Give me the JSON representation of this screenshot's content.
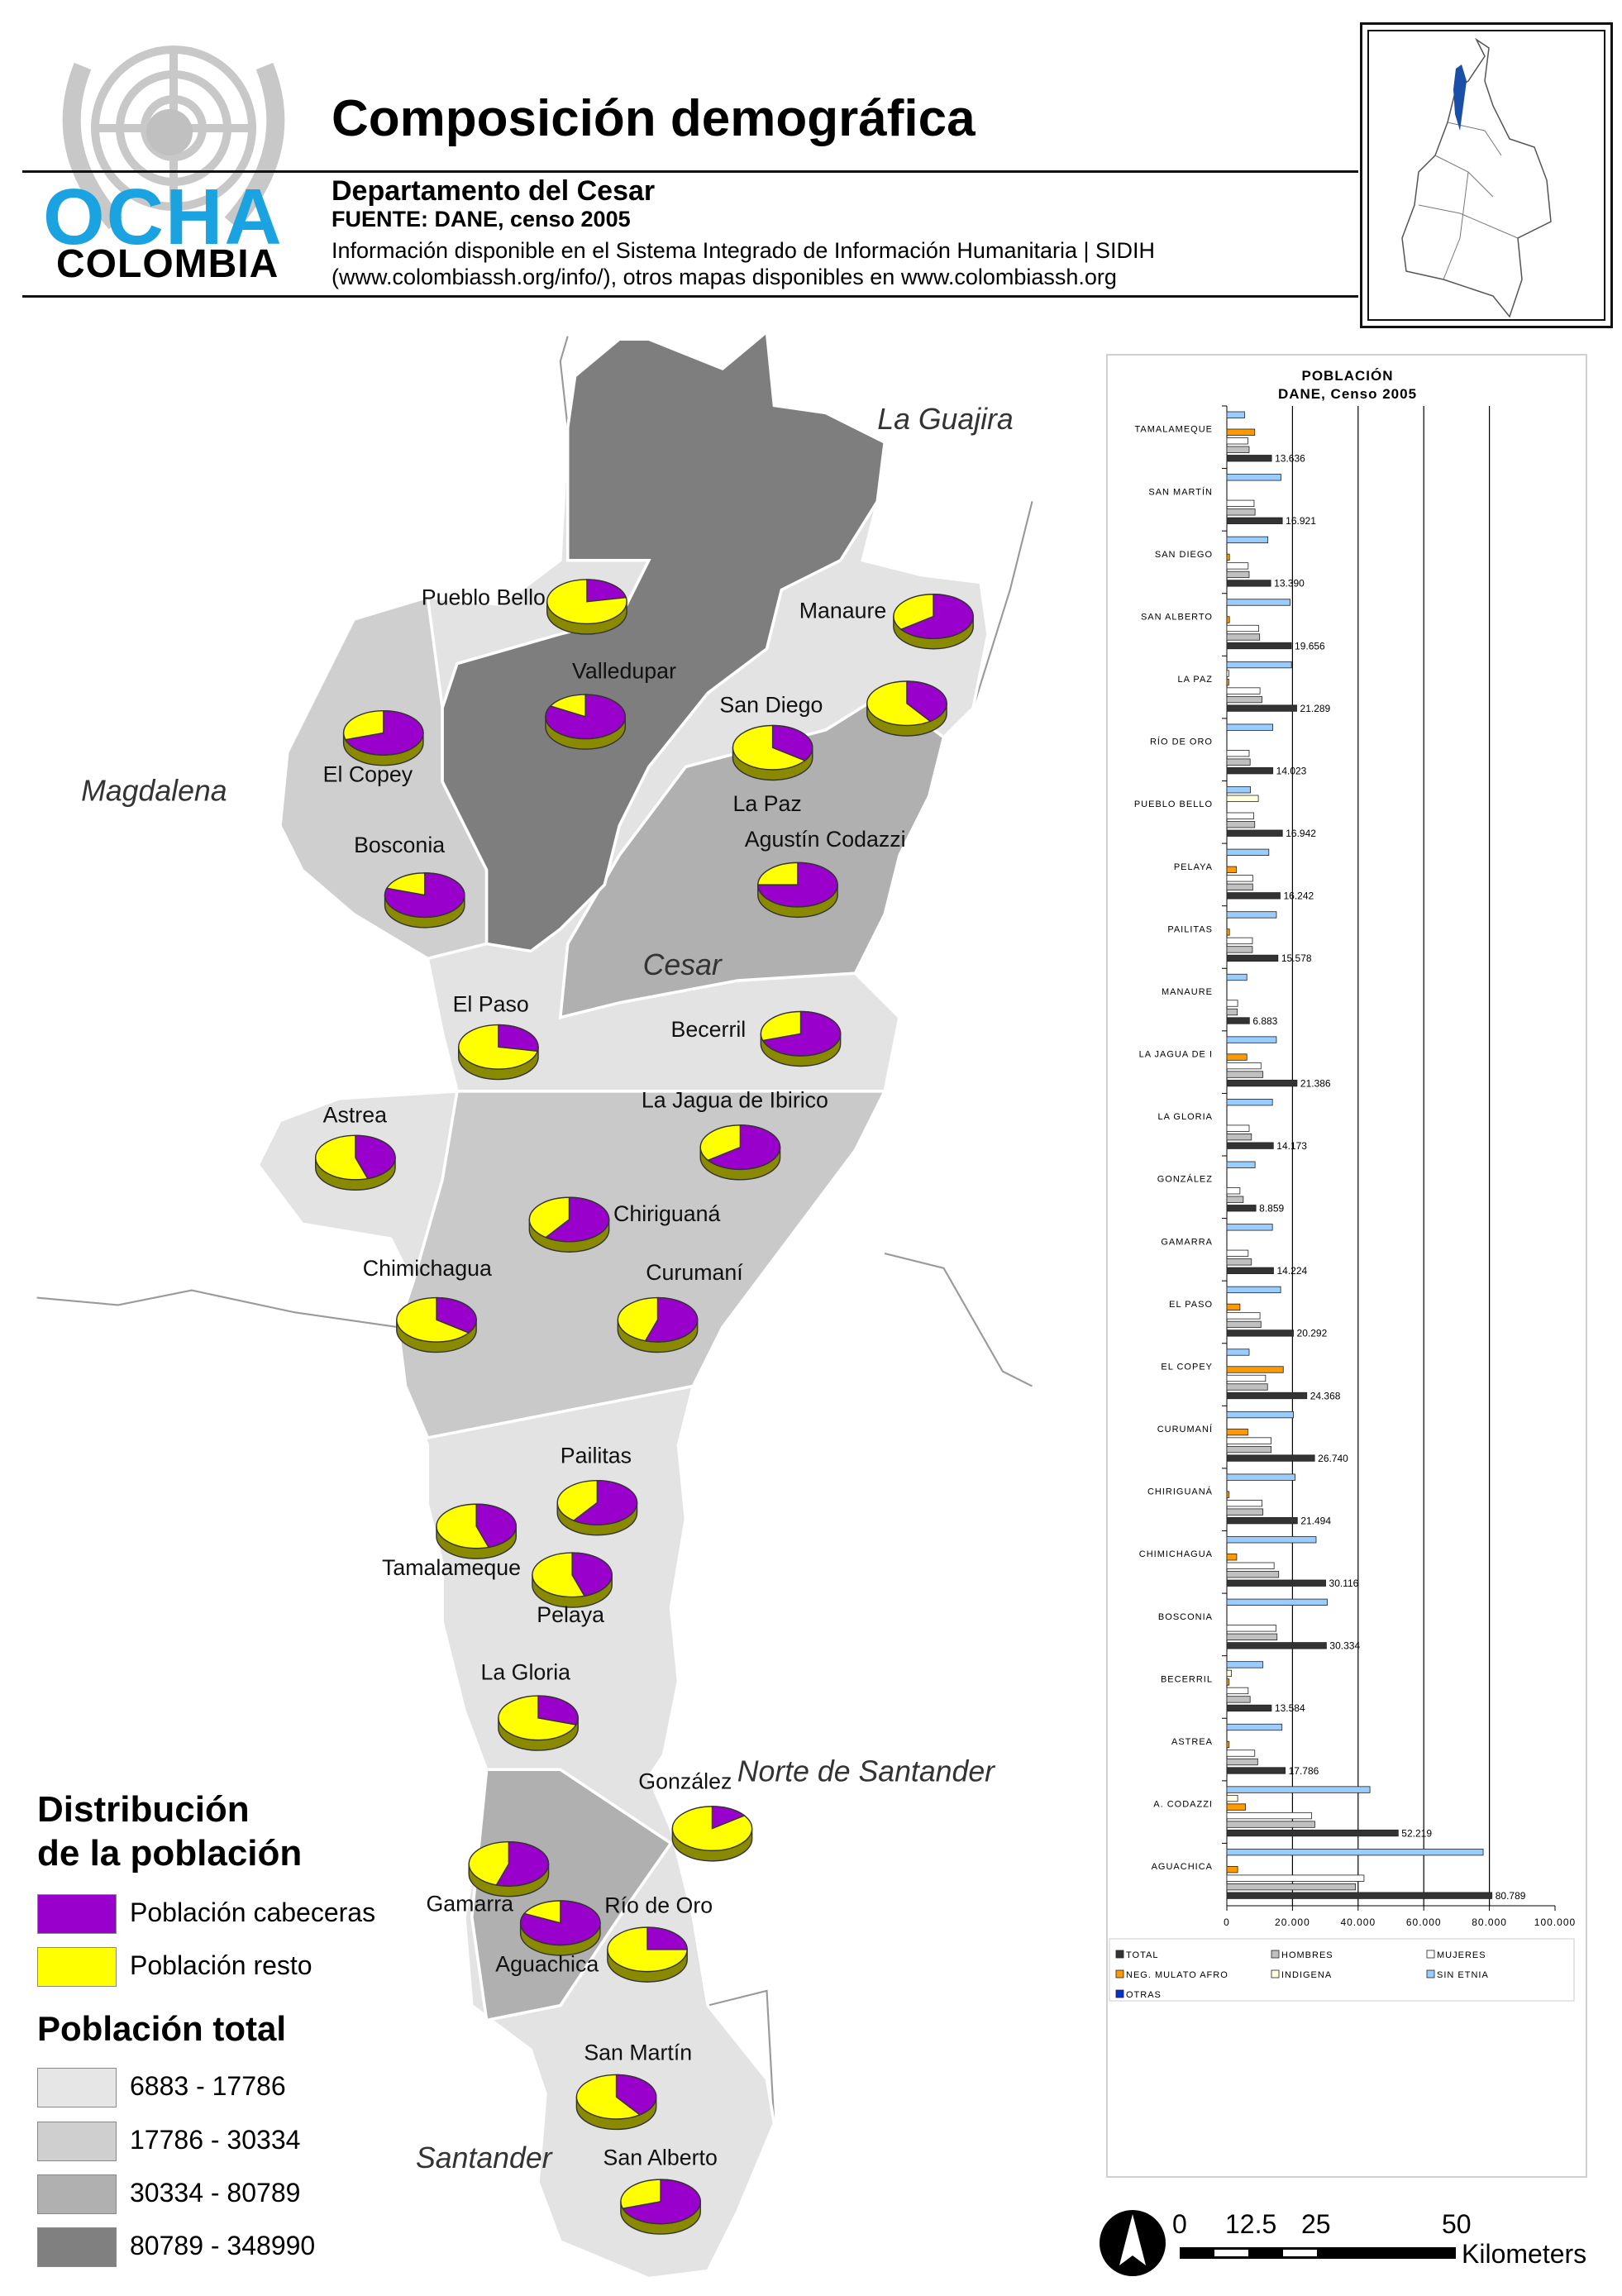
{
  "header": {
    "title": "Composición demográfica",
    "department": "Departamento del Cesar",
    "source": "FUENTE: DANE, censo 2005",
    "info_line1": "Información disponible en el Sistema Integrado de Información Humanitaria | SIDIH",
    "info_line2": "(www.colombiassh.org/info/), otros mapas disponibles en www.colombiassh.org"
  },
  "logo": {
    "ocha": "OCHA",
    "country": "COLOMBIA",
    "ocha_color": "#1aa3e0"
  },
  "map": {
    "regions": [
      {
        "name": "La Guajira"
      },
      {
        "name": "Magdalena"
      },
      {
        "name": "Cesar"
      },
      {
        "name": "Norte de Santander"
      },
      {
        "name": "Santander"
      }
    ],
    "municipalities": [
      {
        "name": "Pueblo Bello",
        "cabecera_share": 0.22
      },
      {
        "name": "Manaure",
        "cabecera_share": 0.65
      },
      {
        "name": "Valledupar",
        "cabecera_share": 0.83
      },
      {
        "name": "San Diego",
        "cabecera_share": 0.35
      },
      {
        "name": "La Paz",
        "cabecera_share": 0.4
      },
      {
        "name": "El Copey",
        "cabecera_share": 0.7
      },
      {
        "name": "Bosconia",
        "cabecera_share": 0.8
      },
      {
        "name": "Agustín Codazzi",
        "cabecera_share": 0.75
      },
      {
        "name": "El Paso",
        "cabecera_share": 0.28
      },
      {
        "name": "Becerril",
        "cabecera_share": 0.7
      },
      {
        "name": "Astrea",
        "cabecera_share": 0.45
      },
      {
        "name": "La Jagua de Ibirico",
        "cabecera_share": 0.65
      },
      {
        "name": "Chiriguaná",
        "cabecera_share": 0.6
      },
      {
        "name": "Chimichagua",
        "cabecera_share": 0.35
      },
      {
        "name": "Curumaní",
        "cabecera_share": 0.55
      },
      {
        "name": "Pailitas",
        "cabecera_share": 0.6
      },
      {
        "name": "Tamalameque",
        "cabecera_share": 0.45
      },
      {
        "name": "Pelaya",
        "cabecera_share": 0.45
      },
      {
        "name": "La Gloria",
        "cabecera_share": 0.3
      },
      {
        "name": "González",
        "cabecera_share": 0.15
      },
      {
        "name": "Gamarra",
        "cabecera_share": 0.55
      },
      {
        "name": "Río de Oro",
        "cabecera_share": 0.25
      },
      {
        "name": "Aguachica",
        "cabecera_share": 0.82
      },
      {
        "name": "San Martín",
        "cabecera_share": 0.4
      },
      {
        "name": "San Alberto",
        "cabecera_share": 0.7
      }
    ]
  },
  "legend": {
    "dist_title_line1": "Distribución",
    "dist_title_line2": "de la población",
    "cabeceras": {
      "label": "Población cabeceras",
      "color": "#9900cc"
    },
    "resto": {
      "label": "Población resto",
      "color": "#ffff00"
    },
    "total_title": "Población total",
    "classes": [
      {
        "label": "6883 - 17786",
        "color": "#e6e6e6"
      },
      {
        "label": "17786 - 30334",
        "color": "#cfcfcf"
      },
      {
        "label": "30334 - 80789",
        "color": "#b0b0b0"
      },
      {
        "label": "80789 - 348990",
        "color": "#808080"
      }
    ]
  },
  "scale": {
    "ticks": [
      "0",
      "12.5",
      "25",
      "50"
    ],
    "unit": "Kilometers"
  },
  "chart_data": {
    "type": "bar",
    "orientation": "horizontal",
    "title": "POBLACIÓN",
    "subtitle": "DANE, Censo 2005",
    "xlim": [
      0,
      100000
    ],
    "xticks": [
      "0",
      "20.000",
      "40.000",
      "60.000",
      "80.000",
      "100.000"
    ],
    "grid": true,
    "legend_position": "bottom",
    "categories": [
      "TAMALAMEQUE",
      "SAN MARTÍN",
      "SAN DIEGO",
      "SAN ALBERTO",
      "LA PAZ",
      "RÍO DE ORO",
      "PUEBLO BELLO",
      "PELAYA",
      "PAILITAS",
      "MANAURE",
      "LA JAGUA DE I",
      "LA GLORIA",
      "GONZÁLEZ",
      "GAMARRA",
      "EL PASO",
      "EL COPEY",
      "CURUMANÍ",
      "CHIRIGUANÁ",
      "CHIMICHAGUA",
      "BOSCONIA",
      "BECERRIL",
      "ASTREA",
      "A. CODAZZI",
      "AGUACHICA"
    ],
    "total_labels": [
      "13.636",
      "16.921",
      "13.390",
      "19.656",
      "21.289",
      "14.023",
      "16.942",
      "16.242",
      "15.578",
      "6.883",
      "21.386",
      "14.173",
      "8.859",
      "14.224",
      "20.292",
      "24.368",
      "26.740",
      "21.494",
      "30.116",
      "30.334",
      "13.584",
      "17.786",
      "52.219",
      "80.789"
    ],
    "series": [
      {
        "name": "SIN ETNIA",
        "color": "#99ccff",
        "values": [
          5400,
          16500,
          12500,
          19300,
          19700,
          14000,
          7200,
          12800,
          15100,
          6100,
          15100,
          13900,
          8600,
          13900,
          16400,
          6800,
          20300,
          20800,
          27200,
          30600,
          11000,
          16800,
          43600,
          78100
        ]
      },
      {
        "name": "INDIGENA",
        "color": "#ffffe0",
        "values": [
          0,
          0,
          0,
          0,
          600,
          0,
          9600,
          0,
          0,
          0,
          0,
          0,
          0,
          0,
          0,
          0,
          0,
          0,
          0,
          0,
          1400,
          0,
          3300,
          0
        ]
      },
      {
        "name": "NEG. MULATO AFRO",
        "color": "#ff9900",
        "values": [
          8500,
          0,
          800,
          800,
          600,
          0,
          0,
          2900,
          800,
          0,
          6100,
          0,
          0,
          0,
          4000,
          17200,
          6400,
          700,
          3000,
          0,
          700,
          700,
          5700,
          3300
        ]
      },
      {
        "name": "MUJERES",
        "color": "#ffffff",
        "values": [
          6400,
          8300,
          6500,
          9700,
          10100,
          6800,
          8200,
          7900,
          7800,
          3300,
          10400,
          6800,
          4000,
          6500,
          10100,
          11800,
          13500,
          10700,
          14400,
          15000,
          6500,
          8500,
          25800,
          41800
        ]
      },
      {
        "name": "HOMBRES",
        "color": "#c0c0c0",
        "values": [
          6800,
          8600,
          6800,
          10000,
          10700,
          7100,
          8500,
          7900,
          7800,
          3200,
          11000,
          7500,
          5000,
          7500,
          10400,
          12400,
          13500,
          11000,
          15800,
          15300,
          7100,
          9400,
          26800,
          39200
        ]
      },
      {
        "name": "TOTAL",
        "color": "#333333",
        "values": [
          13636,
          16921,
          13390,
          19656,
          21289,
          14023,
          16942,
          16242,
          15578,
          6883,
          21386,
          14173,
          8859,
          14224,
          20292,
          24368,
          26740,
          21494,
          30116,
          30334,
          13584,
          17786,
          52219,
          80789
        ]
      },
      {
        "name": "OTRAS",
        "color": "#0033cc",
        "values": [
          0,
          0,
          0,
          0,
          0,
          0,
          0,
          0,
          0,
          0,
          0,
          0,
          0,
          0,
          0,
          0,
          0,
          0,
          0,
          0,
          0,
          0,
          0,
          0
        ]
      }
    ],
    "legend_entries": [
      "TOTAL",
      "HOMBRES",
      "MUJERES",
      "NEG. MULATO AFRO",
      "INDIGENA",
      "SIN ETNIA",
      "OTRAS"
    ]
  }
}
